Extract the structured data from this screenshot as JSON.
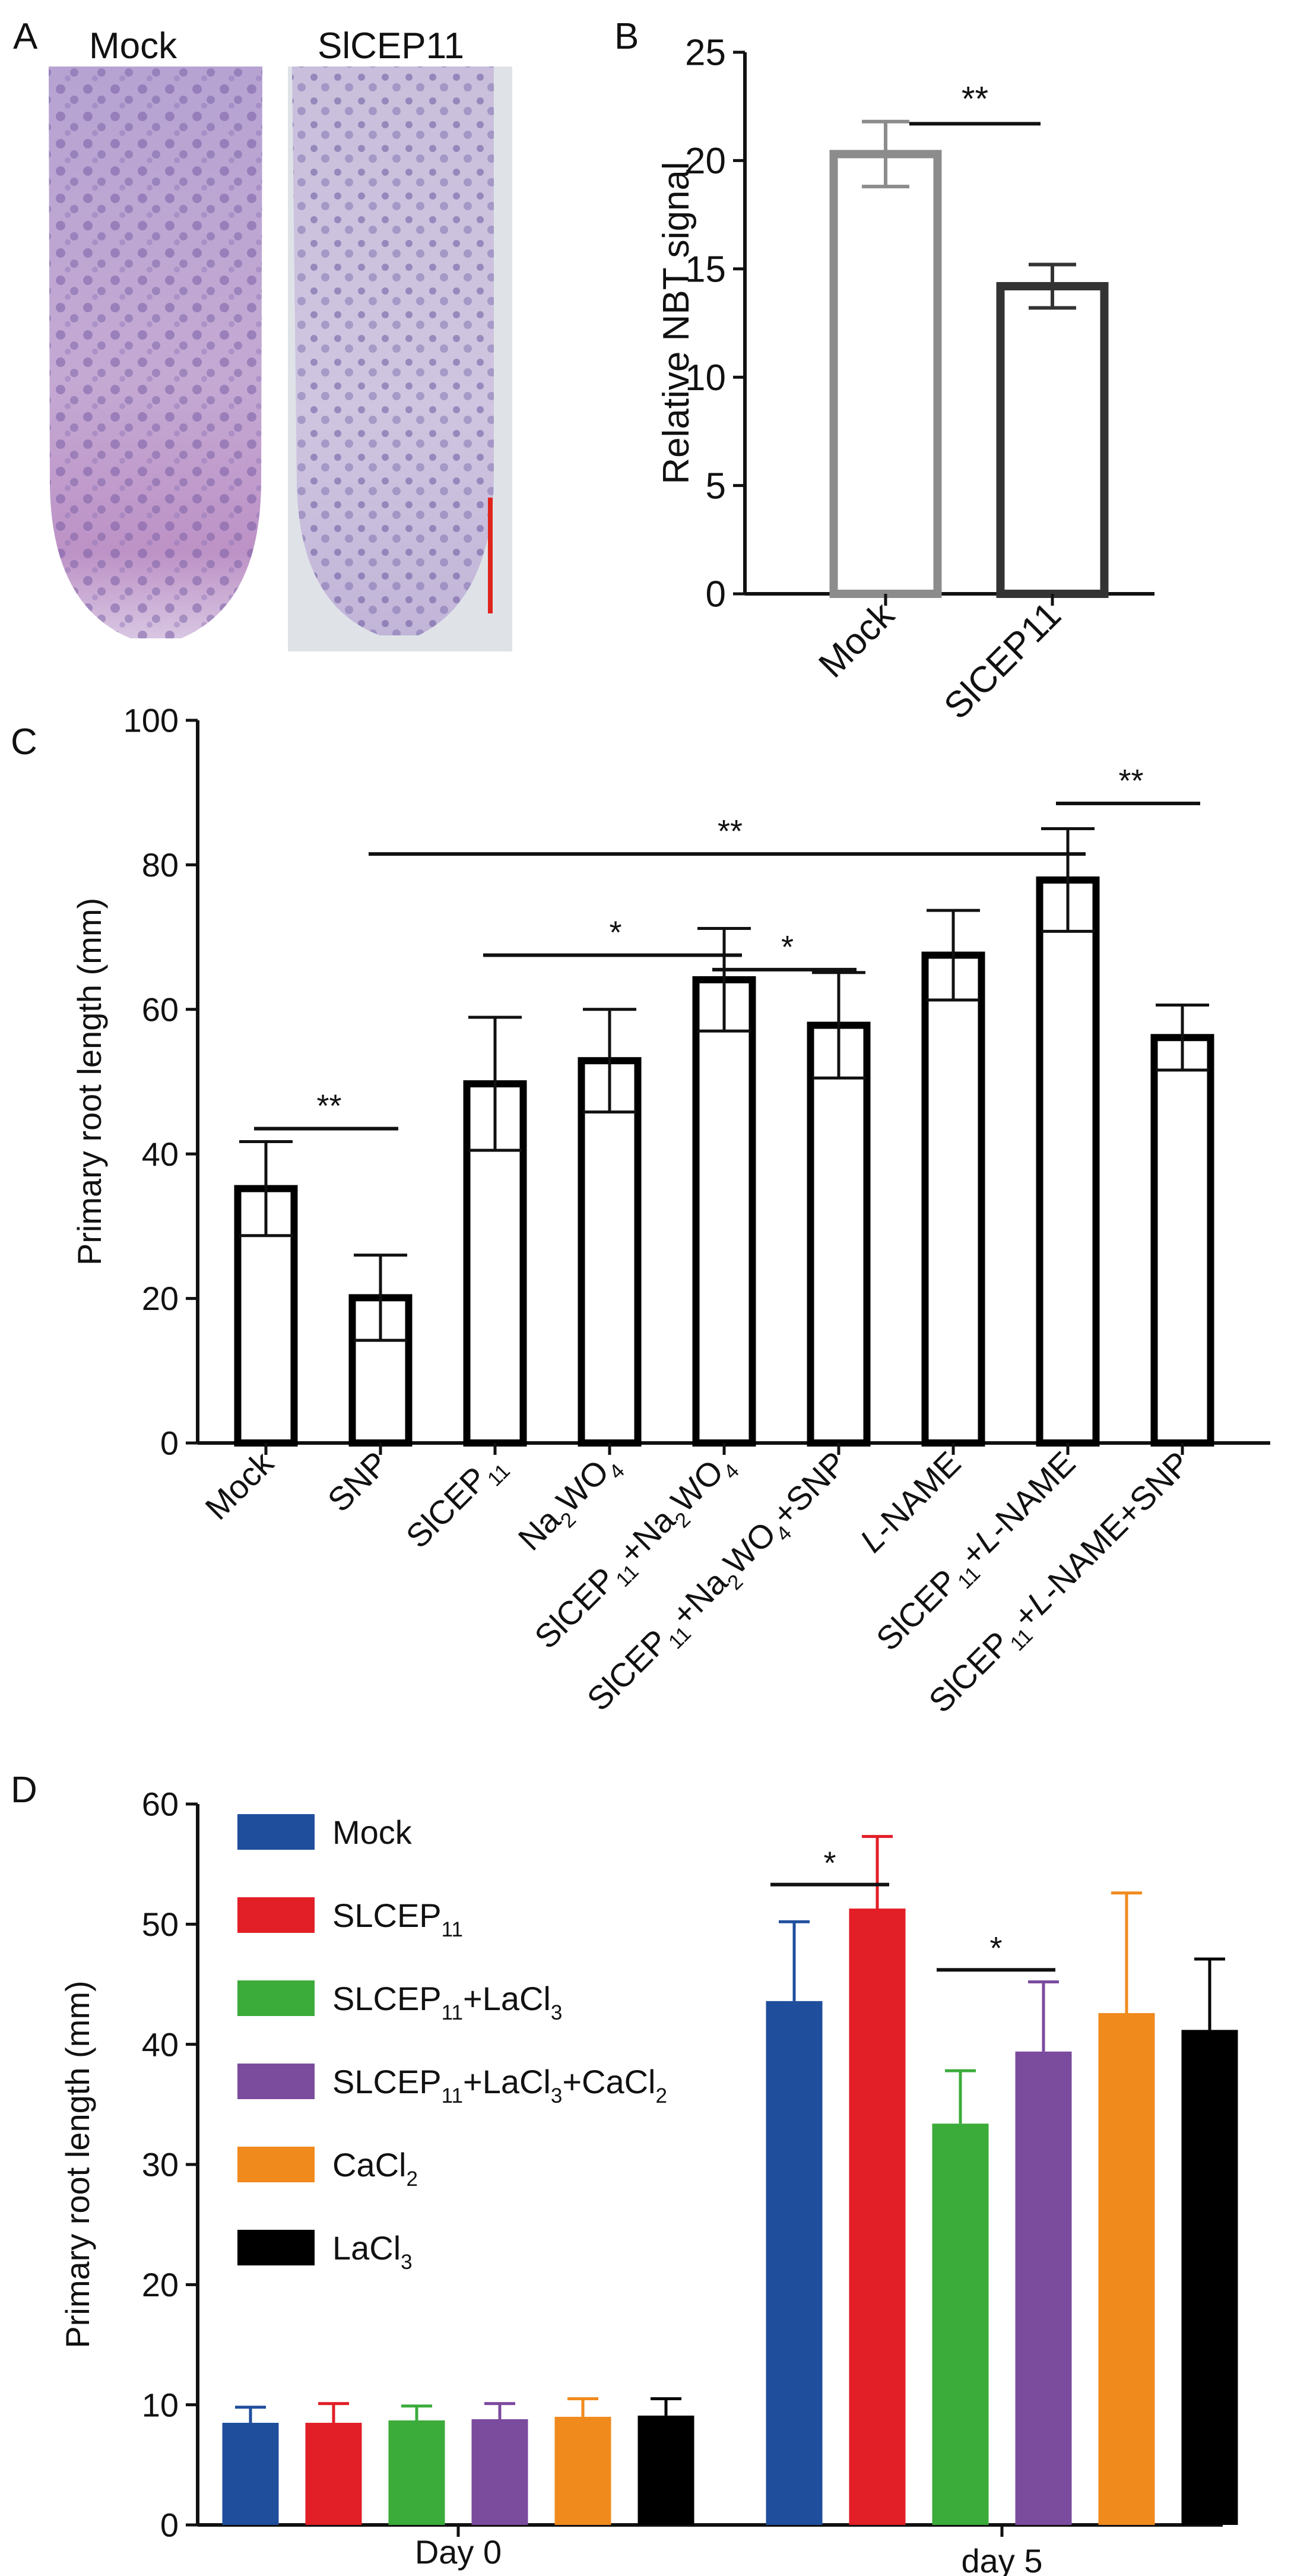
{
  "figure": {
    "panel_letters": [
      "A",
      "B",
      "C",
      "D"
    ],
    "panelA": {
      "labels": [
        "Mock",
        "SlCEP11"
      ],
      "colors": {
        "stain_dark": "#7a5fa6",
        "stain_light": "#d6cde6",
        "background": "#dfe3e8",
        "scale_bar": "#e0241b"
      }
    }
  },
  "chart_data": [
    {
      "id": "B",
      "type": "bar",
      "title": "",
      "xlabel": "",
      "ylabel": "Relative NBT signal",
      "ylim": [
        0,
        25
      ],
      "yticks": [
        "0",
        "5",
        "10",
        "15",
        "20",
        "25"
      ],
      "categories": [
        "Mock",
        "SlCEP11"
      ],
      "values": [
        20.3,
        14.2
      ],
      "errors": [
        1.5,
        1.0
      ],
      "bar_colors": [
        "#8c8c8c",
        "#333333"
      ],
      "significance": [
        {
          "from": 0,
          "to": 1,
          "label": "**",
          "y": 21.7
        }
      ]
    },
    {
      "id": "C",
      "type": "bar",
      "title": "",
      "xlabel": "",
      "ylabel": "Primary root length (mm)",
      "ylim": [
        0,
        100
      ],
      "yticks": [
        "0",
        "20",
        "40",
        "60",
        "80",
        "100"
      ],
      "categories": [
        "Mock",
        "SNP",
        "SlCEP11",
        "Na2WO4",
        "SlCEP11+Na2WO4",
        "SlCEP11+Na2WO4+SNP",
        "L-NAME",
        "SlCEP11+L-NAME",
        "SlCEP11+L-NAME+SNP"
      ],
      "values": [
        35.2,
        20.1,
        49.7,
        52.9,
        64.1,
        57.8,
        67.5,
        77.9,
        56.1
      ],
      "errors": [
        6.5,
        5.9,
        9.2,
        7.1,
        7.1,
        7.3,
        6.2,
        7.1,
        4.5
      ],
      "bar_color": "#000000",
      "significance": [
        {
          "from": 0,
          "to": 1,
          "label": "**",
          "y": 43.5
        },
        {
          "from": 1,
          "to": 7,
          "label": "**",
          "y": 81.5
        },
        {
          "from": 2,
          "to": 4,
          "label": "*",
          "y": 67.5
        },
        {
          "from": 4,
          "to": 5,
          "label": "*",
          "y": 65.5
        },
        {
          "from": 7,
          "to": 8,
          "label": "**",
          "y": 88.5
        }
      ]
    },
    {
      "id": "D",
      "type": "bar",
      "title": "",
      "xlabel": "",
      "ylabel": "Primary root length (mm)",
      "ylim": [
        0,
        60
      ],
      "yticks": [
        "0",
        "10",
        "20",
        "30",
        "40",
        "50",
        "60"
      ],
      "categories": [
        "Day 0",
        "day 5"
      ],
      "series": [
        {
          "name": "Mock",
          "color": "#1f4e9c",
          "values": [
            8.5,
            43.6
          ],
          "errors": [
            1.3,
            6.6
          ]
        },
        {
          "name": "SLCEP11",
          "color": "#e21e26",
          "values": [
            8.5,
            51.3
          ],
          "errors": [
            1.6,
            6.0
          ]
        },
        {
          "name": "SLCEP11+LaCl3",
          "color": "#3bab3a",
          "values": [
            8.7,
            33.4
          ],
          "errors": [
            1.2,
            4.4
          ]
        },
        {
          "name": "SLCEP11+LaCl3+CaCl2",
          "color": "#7b4b9e",
          "values": [
            8.8,
            39.4
          ],
          "errors": [
            1.3,
            5.8
          ]
        },
        {
          "name": "CaCl2",
          "color": "#f08a1d",
          "values": [
            9.0,
            42.6
          ],
          "errors": [
            1.5,
            10.0
          ]
        },
        {
          "name": "LaCl3",
          "color": "#000000",
          "values": [
            9.1,
            41.2
          ],
          "errors": [
            1.4,
            5.9
          ]
        }
      ],
      "legend_position": "top-left",
      "significance": [
        {
          "group": 1,
          "from": 0,
          "to": 1,
          "label": "*",
          "y": 53.3
        },
        {
          "group": 1,
          "from": 2,
          "to": 3,
          "label": "*",
          "y": 46.2
        }
      ]
    }
  ]
}
